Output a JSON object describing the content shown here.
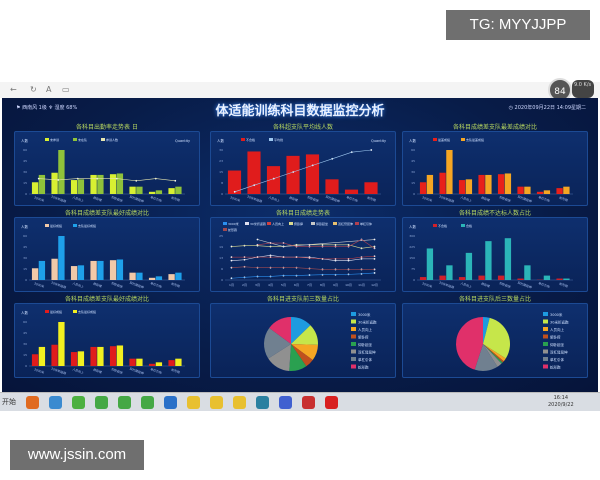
{
  "watermark_top": "TG: MYYJJPP",
  "watermark_bottom": "www.jssin.com",
  "browser": {
    "zoom_badge": "84",
    "badge_side": "9.0\nK/s",
    "nav_icons": [
      "back-icon",
      "refresh-icon",
      "font-icon",
      "tab-icon"
    ]
  },
  "header": {
    "weather": "西南风 1级",
    "humidity": "湿度 68%",
    "title": "体适能训练科目数据监控分析",
    "datetime": "2020年09月22日 14:09星期二"
  },
  "taskbar": {
    "start": "开始",
    "time": "16:14",
    "date": "2020/9/22"
  },
  "chart_data": [
    {
      "type": "bar",
      "title": "各科目出勤率走势表 日",
      "ylabel": "人数",
      "y2label": "Quantity",
      "ylim": [
        0,
        60
      ],
      "y2lim": [
        0,
        100
      ],
      "categories": [
        "3000米",
        "30米折返跑",
        "人员向上",
        "俯卧撑",
        "仰卧起坐",
        "双杠臂屈伸",
        "单杠引体",
        "蛇形跑"
      ],
      "series": [
        {
          "name": "未参训",
          "kind": "bar",
          "color": "#d8f032",
          "values": [
            16,
            29,
            19,
            26,
            27,
            10,
            3,
            8
          ]
        },
        {
          "name": "未在队",
          "kind": "bar",
          "color": "#8fc23a",
          "values": [
            26,
            60,
            20,
            26,
            28,
            10,
            5,
            10
          ]
        },
        {
          "name": "参训人数",
          "kind": "line",
          "axis": "right",
          "color": "#e6e6b0",
          "values": [
            35,
            32,
            35,
            35,
            35,
            30,
            35,
            30
          ]
        }
      ]
    },
    {
      "type": "bar",
      "title": "各科超支队平均线人数",
      "ylabel": "人数",
      "y2label": "Quantity",
      "ylim": [
        0,
        30
      ],
      "y2lim": [
        0,
        100
      ],
      "categories": [
        "3000米",
        "30米折返跑",
        "人员向上",
        "俯卧撑",
        "仰卧起坐",
        "双杠臂屈伸",
        "单杠引体",
        "蛇形跑"
      ],
      "series": [
        {
          "name": "不合格",
          "kind": "bar",
          "color": "#e01c1c",
          "values": [
            16,
            29,
            19,
            26,
            27,
            10,
            3,
            8
          ]
        },
        {
          "name": "平均线",
          "kind": "line",
          "axis": "right",
          "color": "#9ec8f0",
          "values": [
            5,
            20,
            35,
            50,
            65,
            80,
            95,
            100
          ]
        }
      ]
    },
    {
      "type": "bar",
      "title": "各科目成绩差支队最差成绩对比",
      "ylabel": "人数",
      "ylim": [
        0,
        60
      ],
      "categories": [
        "3000米",
        "30米折返跑",
        "人员向上",
        "俯卧撑",
        "仰卧起坐",
        "双杠臂屈伸",
        "单杠引体",
        "蛇形跑"
      ],
      "series": [
        {
          "name": "最差成绩",
          "kind": "bar",
          "color": "#e8201a",
          "values": [
            16,
            29,
            19,
            26,
            27,
            10,
            3,
            8
          ]
        },
        {
          "name": "支队最差成绩",
          "kind": "bar",
          "color": "#f5a623",
          "values": [
            26,
            60,
            20,
            26,
            28,
            10,
            5,
            10
          ]
        }
      ]
    },
    {
      "type": "bar",
      "title": "各科目成绩差支队最好成绩对比",
      "ylabel": "人数",
      "ylim": [
        0,
        60
      ],
      "categories": [
        "3000米",
        "30米折返跑",
        "人员向上",
        "俯卧撑",
        "仰卧起坐",
        "双杠臂屈伸",
        "单杠引体",
        "蛇形跑"
      ],
      "series": [
        {
          "name": "最好成绩",
          "kind": "bar",
          "color": "#f2c9a8",
          "values": [
            16,
            29,
            19,
            26,
            27,
            10,
            3,
            8
          ]
        },
        {
          "name": "支队最好成绩",
          "kind": "bar",
          "color": "#1ea0ea",
          "values": [
            26,
            60,
            20,
            26,
            28,
            10,
            5,
            10
          ]
        }
      ]
    },
    {
      "type": "line",
      "title": "各科目日成绩走势表",
      "ylim": [
        0,
        25
      ],
      "categories": [
        "1月",
        "2月",
        "3月",
        "4月",
        "5月",
        "6月",
        "7月",
        "8月",
        "9月",
        "10月",
        "11月",
        "12月"
      ],
      "series": [
        {
          "name": "3000米",
          "color": "#2a8ff0",
          "values": [
            1,
            1.5,
            2,
            2,
            2.5,
            2.5,
            2.8,
            3,
            3,
            3.2,
            3.5,
            4
          ]
        },
        {
          "name": "30米折返跑",
          "color": "#e0e0f0",
          "values": [
            11,
            11.5,
            13,
            14,
            13,
            13,
            13,
            12,
            11,
            11,
            12,
            12
          ]
        },
        {
          "name": "人员向上",
          "color": "#d04040",
          "values": [
            13,
            13,
            13,
            13,
            13,
            13,
            12.5,
            12,
            12,
            12,
            13,
            13.5
          ]
        },
        {
          "name": "俯卧撑",
          "color": "#d8d890",
          "values": [
            19,
            19.5,
            19.5,
            19,
            19,
            20,
            20,
            20,
            20,
            20,
            18,
            19
          ]
        },
        {
          "name": "仰卧起坐",
          "color": "#c8c8c8",
          "values": [
            null,
            null,
            23,
            21,
            19,
            null,
            null,
            null,
            null,
            null,
            null,
            23
          ]
        },
        {
          "name": "双杠臂屈伸",
          "color": "#e8c070",
          "values": [
            null,
            null,
            null,
            null,
            null,
            null,
            null,
            null,
            null,
            null,
            null,
            null
          ]
        },
        {
          "name": "单杠引体",
          "color": "#b04050",
          "values": [
            null,
            null,
            20,
            21,
            21,
            19,
            19,
            19,
            19,
            19,
            23,
            18
          ]
        },
        {
          "name": "蛇形跑",
          "color": "#a04a50",
          "values": [
            7,
            7.5,
            7,
            7,
            7,
            7,
            6.5,
            6,
            6,
            6,
            6,
            6
          ]
        }
      ]
    },
    {
      "type": "bar",
      "title": "各科目成绩不达标人数占比",
      "ylabel": "人数",
      "ylim": [
        0,
        300
      ],
      "categories": [
        "3000米",
        "30米折返跑",
        "人员向上",
        "俯卧撑",
        "仰卧起坐",
        "双杠臂屈伸",
        "单杠引体",
        "蛇形跑"
      ],
      "series": [
        {
          "name": "不合格",
          "kind": "bar",
          "color": "#d0202a",
          "values": [
            20,
            30,
            20,
            30,
            30,
            10,
            2,
            10
          ]
        },
        {
          "name": "合格",
          "kind": "bar",
          "color": "#2bb5b8",
          "values": [
            215,
            100,
            185,
            265,
            285,
            100,
            30,
            10
          ]
        }
      ]
    },
    {
      "type": "bar",
      "title": "各科目成绩差支队最好成绩对比",
      "ylabel": "人数",
      "ylim": [
        0,
        60
      ],
      "categories": [
        "3000米",
        "30米折返跑",
        "人员向上",
        "俯卧撑",
        "仰卧起坐",
        "双杠臂屈伸",
        "单杠引体",
        "蛇形跑"
      ],
      "series": [
        {
          "name": "最好成绩",
          "kind": "bar",
          "color": "#e01c1c",
          "values": [
            16,
            29,
            19,
            26,
            27,
            10,
            3,
            8
          ]
        },
        {
          "name": "支队最好成绩",
          "kind": "bar",
          "color": "#f2f020",
          "values": [
            26,
            60,
            20,
            26,
            28,
            10,
            5,
            10
          ]
        }
      ]
    },
    {
      "type": "pie",
      "title": "各科目进支队前三数量占比",
      "categories": [
        "3000米",
        "30米折返跑",
        "人员向上",
        "俯卧撑",
        "仰卧起坐",
        "双杠臂屈伸",
        "单杠引体",
        "蛇形跑"
      ],
      "colors": [
        "#1e9be0",
        "#c6e64a",
        "#f5a623",
        "#c0501e",
        "#2aa050",
        "#909090",
        "#708090",
        "#e0306a"
      ],
      "values": [
        12,
        12,
        9,
        5,
        10,
        14,
        18,
        14
      ]
    },
    {
      "type": "pie",
      "title": "各科目进支队后三数量占比",
      "categories": [
        "3000米",
        "30米折返跑",
        "人员向上",
        "俯卧撑",
        "仰卧起坐",
        "双杠臂屈伸",
        "单杠引体",
        "蛇形跑"
      ],
      "colors": [
        "#1e9be0",
        "#c6e64a",
        "#f5a623",
        "#c0501e",
        "#2aa050",
        "#909090",
        "#708090",
        "#e0306a"
      ],
      "values": [
        4,
        30,
        2,
        1,
        1,
        3,
        14,
        45
      ]
    }
  ]
}
